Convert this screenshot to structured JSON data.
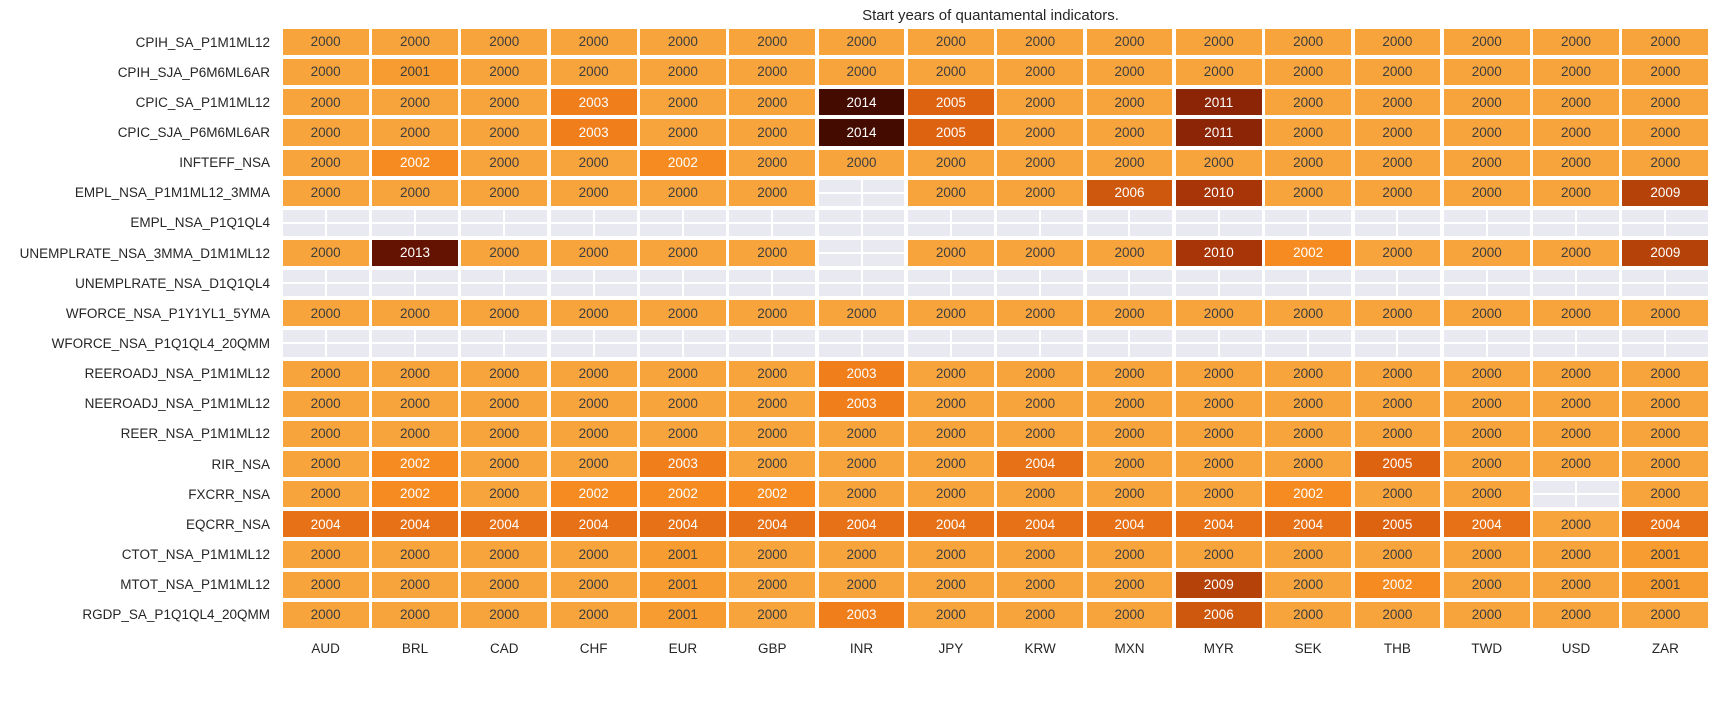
{
  "title": "Start years of quantamental indicators.",
  "chart_data": {
    "type": "heatmap",
    "title": "Start years of quantamental indicators.",
    "legend_position": "none",
    "grid": false,
    "columns": [
      "AUD",
      "BRL",
      "CAD",
      "CHF",
      "EUR",
      "GBP",
      "INR",
      "JPY",
      "KRW",
      "MXN",
      "MYR",
      "SEK",
      "THB",
      "TWD",
      "USD",
      "ZAR"
    ],
    "rows": [
      "CPIH_SA_P1M1ML12",
      "CPIH_SJA_P6M6ML6AR",
      "CPIC_SA_P1M1ML12",
      "CPIC_SJA_P6M6ML6AR",
      "INFTEFF_NSA",
      "EMPL_NSA_P1M1ML12_3MMA",
      "EMPL_NSA_P1Q1QL4",
      "UNEMPLRATE_NSA_3MMA_D1M1ML12",
      "UNEMPLRATE_NSA_D1Q1QL4",
      "WFORCE_NSA_P1Y1YL1_5YMA",
      "WFORCE_NSA_P1Q1QL4_20QMM",
      "REEROADJ_NSA_P1M1ML12",
      "NEEROADJ_NSA_P1M1ML12",
      "REER_NSA_P1M1ML12",
      "RIR_NSA",
      "FXCRR_NSA",
      "EQCRR_NSA",
      "CTOT_NSA_P1M1ML12",
      "MTOT_NSA_P1M1ML12",
      "RGDP_SA_P1Q1QL4_20QMM"
    ],
    "values": [
      [
        2000,
        2000,
        2000,
        2000,
        2000,
        2000,
        2000,
        2000,
        2000,
        2000,
        2000,
        2000,
        2000,
        2000,
        2000,
        2000
      ],
      [
        2000,
        2001,
        2000,
        2000,
        2000,
        2000,
        2000,
        2000,
        2000,
        2000,
        2000,
        2000,
        2000,
        2000,
        2000,
        2000
      ],
      [
        2000,
        2000,
        2000,
        2003,
        2000,
        2000,
        2014,
        2005,
        2000,
        2000,
        2011,
        2000,
        2000,
        2000,
        2000,
        2000
      ],
      [
        2000,
        2000,
        2000,
        2003,
        2000,
        2000,
        2014,
        2005,
        2000,
        2000,
        2011,
        2000,
        2000,
        2000,
        2000,
        2000
      ],
      [
        2000,
        2002,
        2000,
        2000,
        2002,
        2000,
        2000,
        2000,
        2000,
        2000,
        2000,
        2000,
        2000,
        2000,
        2000,
        2000
      ],
      [
        2000,
        2000,
        2000,
        2000,
        2000,
        2000,
        null,
        2000,
        2000,
        2006,
        2010,
        2000,
        2000,
        2000,
        2000,
        2009
      ],
      [
        null,
        null,
        null,
        null,
        null,
        null,
        null,
        null,
        null,
        null,
        null,
        null,
        null,
        null,
        null,
        null
      ],
      [
        2000,
        2013,
        2000,
        2000,
        2000,
        2000,
        null,
        2000,
        2000,
        2000,
        2010,
        2002,
        2000,
        2000,
        2000,
        2009
      ],
      [
        null,
        null,
        null,
        null,
        null,
        null,
        null,
        null,
        null,
        null,
        null,
        null,
        null,
        null,
        null,
        null
      ],
      [
        2000,
        2000,
        2000,
        2000,
        2000,
        2000,
        2000,
        2000,
        2000,
        2000,
        2000,
        2000,
        2000,
        2000,
        2000,
        2000
      ],
      [
        null,
        null,
        null,
        null,
        null,
        null,
        null,
        null,
        null,
        null,
        null,
        null,
        null,
        null,
        null,
        null
      ],
      [
        2000,
        2000,
        2000,
        2000,
        2000,
        2000,
        2003,
        2000,
        2000,
        2000,
        2000,
        2000,
        2000,
        2000,
        2000,
        2000
      ],
      [
        2000,
        2000,
        2000,
        2000,
        2000,
        2000,
        2003,
        2000,
        2000,
        2000,
        2000,
        2000,
        2000,
        2000,
        2000,
        2000
      ],
      [
        2000,
        2000,
        2000,
        2000,
        2000,
        2000,
        2000,
        2000,
        2000,
        2000,
        2000,
        2000,
        2000,
        2000,
        2000,
        2000
      ],
      [
        2000,
        2002,
        2000,
        2000,
        2003,
        2000,
        2000,
        2000,
        2004,
        2000,
        2000,
        2000,
        2005,
        2000,
        2000,
        2000
      ],
      [
        2000,
        2002,
        2000,
        2002,
        2002,
        2002,
        2000,
        2000,
        2000,
        2000,
        2000,
        2002,
        2000,
        2000,
        null,
        2000
      ],
      [
        2004,
        2004,
        2004,
        2004,
        2004,
        2004,
        2004,
        2004,
        2004,
        2004,
        2004,
        2004,
        2005,
        2004,
        2000,
        2004
      ],
      [
        2000,
        2000,
        2000,
        2000,
        2001,
        2000,
        2000,
        2000,
        2000,
        2000,
        2000,
        2000,
        2000,
        2000,
        2000,
        2001
      ],
      [
        2000,
        2000,
        2000,
        2000,
        2001,
        2000,
        2000,
        2000,
        2000,
        2000,
        2009,
        2000,
        2002,
        2000,
        2000,
        2001
      ],
      [
        2000,
        2000,
        2000,
        2000,
        2001,
        2000,
        2003,
        2000,
        2000,
        2000,
        2006,
        2000,
        2000,
        2000,
        2000,
        2000
      ]
    ],
    "value_range": [
      2000,
      2014
    ]
  },
  "colors": {
    "year_colors": {
      "2000": "#F8A43C",
      "2001": "#F69C30",
      "2002": "#F68C21",
      "2003": "#EF7E1B",
      "2004": "#E67117",
      "2005": "#DD6311",
      "2006": "#CE580D",
      "2009": "#B54309",
      "2010": "#A73507",
      "2011": "#8C2505",
      "2013": "#641302",
      "2014": "#440C01"
    },
    "dark_text_max_year": 2001,
    "dark_text": "#3D3D3D",
    "light_text": "#FFFFFF",
    "empty_cell": "#E9E9F1",
    "background": "#FFFFFF",
    "label_text": "#262626"
  }
}
